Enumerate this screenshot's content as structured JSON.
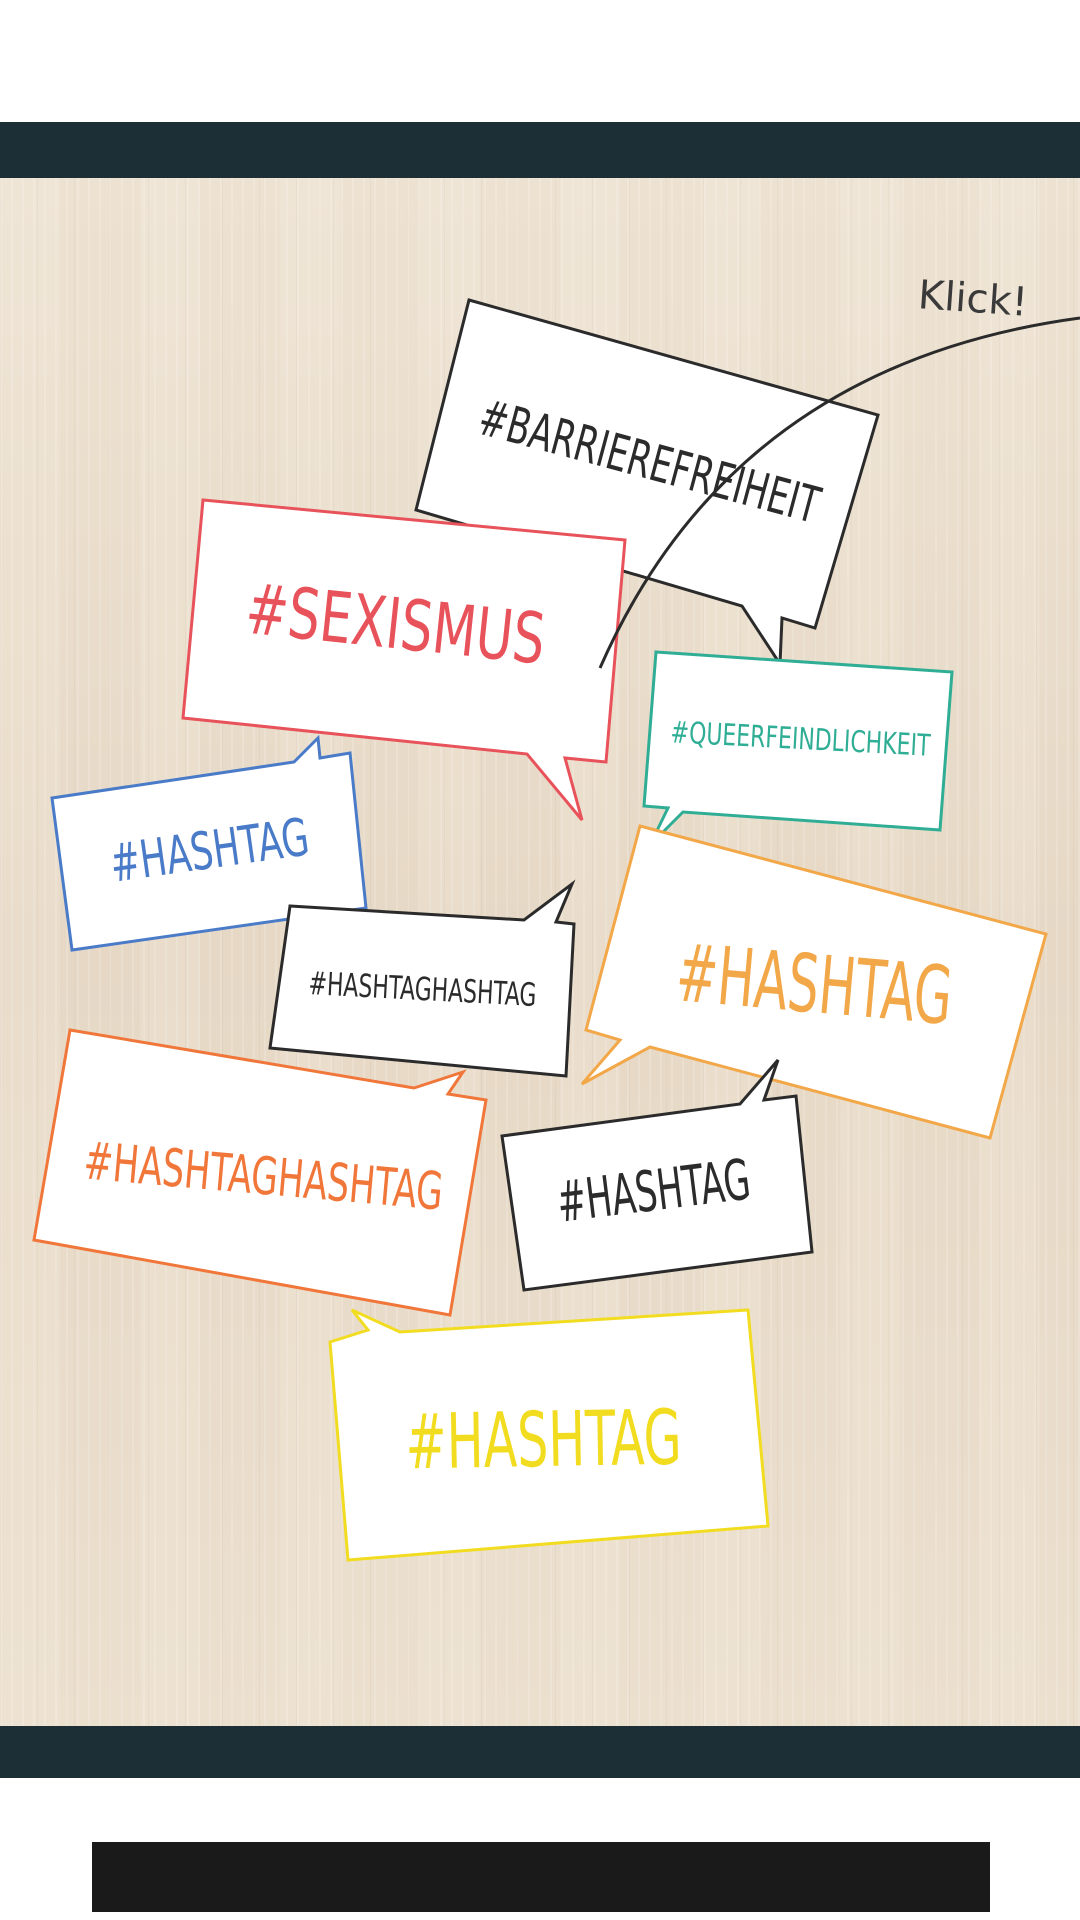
{
  "board": {
    "hint": "Klick!",
    "bubbles": [
      {
        "label": "#BARRIEREFREIHEIT",
        "color": "#2b2b2b"
      },
      {
        "label": "#SEXISMUS",
        "color": "#e8525a"
      },
      {
        "label": "#QUEERFEINDLICHKEIT",
        "color": "#2fae95"
      },
      {
        "label": "#HASHTAG",
        "color": "#4a7bc8"
      },
      {
        "label": "#HASHTAGHASHTAG",
        "color": "#2b2b2b"
      },
      {
        "label": "#HASHTAG",
        "color": "#f2a748"
      },
      {
        "label": "#HASHTAGHASHTAG",
        "color": "#f0763a"
      },
      {
        "label": "#HASHTAG",
        "color": "#2b2b2b"
      },
      {
        "label": "#HASHTAG",
        "color": "#f2dc20"
      }
    ]
  },
  "colors": {
    "frame": "#1c2e36",
    "bottom_block": "#1a1a1a"
  }
}
